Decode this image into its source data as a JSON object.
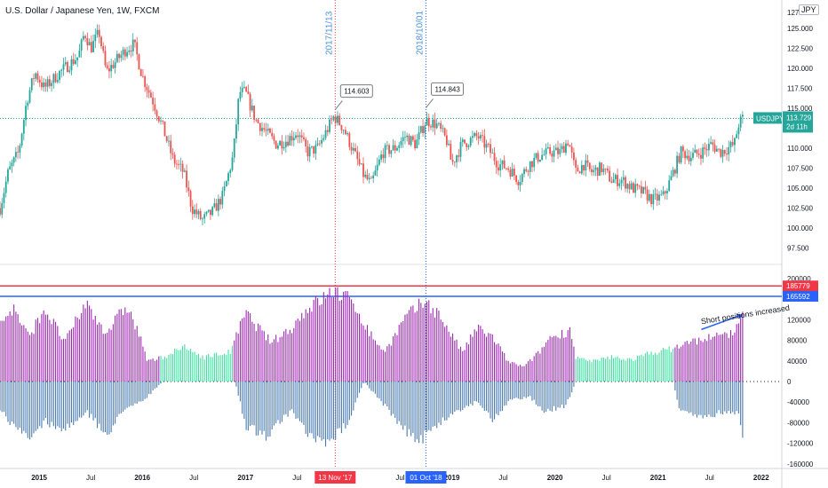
{
  "title": "U.S. Dollar / Japanese Yen, 1W, FXCM",
  "currency_badge": "JPY",
  "colors": {
    "bull": "#26a69a",
    "bear": "#ef5350",
    "net_long": "#9c27b0",
    "net_short": "#4a7ab0",
    "long_small": "#3ee0a0",
    "red_marker": "#f23645",
    "blue_marker": "#2962ff",
    "price_tag": "#26a69a"
  },
  "chart_data": [
    {
      "type": "candlestick",
      "title": "U.S. Dollar / Japanese Yen, 1W, FXCM",
      "y_ticks": [
        127,
        125,
        122.5,
        120,
        117.5,
        115,
        112.5,
        110,
        107.5,
        105,
        102.5,
        100,
        97.5
      ],
      "y_tick_labels": [
        "127",
        "125.000",
        "122.500",
        "120.000",
        "117.500",
        "115.000",
        "112.500",
        "110.000",
        "107.500",
        "105.000",
        "102.500",
        "100.000",
        "97.500"
      ],
      "ylim": [
        96,
        128.4
      ],
      "price_path": [
        [
          2014.62,
          102.5
        ],
        [
          2014.7,
          107.0
        ],
        [
          2014.8,
          109.5
        ],
        [
          2014.88,
          116.0
        ],
        [
          2014.96,
          119.5
        ],
        [
          2015.05,
          117.5
        ],
        [
          2015.2,
          119.5
        ],
        [
          2015.38,
          121.5
        ],
        [
          2015.44,
          124.5
        ],
        [
          2015.5,
          122.5
        ],
        [
          2015.58,
          124.5
        ],
        [
          2015.65,
          119.5
        ],
        [
          2015.75,
          121.0
        ],
        [
          2015.85,
          122.5
        ],
        [
          2015.92,
          123.0
        ],
        [
          2016.0,
          119.0
        ],
        [
          2016.1,
          116.0
        ],
        [
          2016.2,
          112.5
        ],
        [
          2016.3,
          108.5
        ],
        [
          2016.4,
          107.0
        ],
        [
          2016.48,
          102.5
        ],
        [
          2016.58,
          101.0
        ],
        [
          2016.68,
          102.0
        ],
        [
          2016.78,
          104.0
        ],
        [
          2016.88,
          109.0
        ],
        [
          2016.94,
          117.0
        ],
        [
          2017.0,
          117.0
        ],
        [
          2017.1,
          113.5
        ],
        [
          2017.2,
          112.0
        ],
        [
          2017.3,
          110.5
        ],
        [
          2017.4,
          111.0
        ],
        [
          2017.5,
          112.0
        ],
        [
          2017.6,
          109.5
        ],
        [
          2017.7,
          110.0
        ],
        [
          2017.8,
          112.5
        ],
        [
          2017.86,
          114.0
        ],
        [
          2017.95,
          112.5
        ],
        [
          2018.05,
          109.5
        ],
        [
          2018.15,
          106.5
        ],
        [
          2018.22,
          105.5
        ],
        [
          2018.33,
          109.5
        ],
        [
          2018.45,
          110.0
        ],
        [
          2018.55,
          111.5
        ],
        [
          2018.65,
          110.5
        ],
        [
          2018.75,
          113.5
        ],
        [
          2018.85,
          113.0
        ],
        [
          2018.95,
          111.0
        ],
        [
          2019.0,
          108.0
        ],
        [
          2019.1,
          110.5
        ],
        [
          2019.25,
          111.5
        ],
        [
          2019.35,
          110.0
        ],
        [
          2019.45,
          108.0
        ],
        [
          2019.55,
          107.5
        ],
        [
          2019.65,
          106.0
        ],
        [
          2019.75,
          108.0
        ],
        [
          2019.85,
          109.0
        ],
        [
          2019.95,
          109.5
        ],
        [
          2020.05,
          109.5
        ],
        [
          2020.13,
          111.0
        ],
        [
          2020.2,
          107.0
        ],
        [
          2020.28,
          108.0
        ],
        [
          2020.35,
          107.0
        ],
        [
          2020.45,
          107.5
        ],
        [
          2020.55,
          106.0
        ],
        [
          2020.65,
          106.0
        ],
        [
          2020.75,
          105.0
        ],
        [
          2020.85,
          104.5
        ],
        [
          2020.95,
          103.5
        ],
        [
          2021.05,
          104.0
        ],
        [
          2021.12,
          106.0
        ],
        [
          2021.22,
          109.5
        ],
        [
          2021.32,
          109.0
        ],
        [
          2021.42,
          109.5
        ],
        [
          2021.52,
          110.5
        ],
        [
          2021.6,
          109.5
        ],
        [
          2021.68,
          110.0
        ],
        [
          2021.74,
          110.5
        ],
        [
          2021.78,
          113.0
        ],
        [
          2021.82,
          113.7
        ]
      ],
      "x_ticks": [
        {
          "label": "2015",
          "x": 2015.0
        },
        {
          "label": "Jul",
          "x": 2015.5
        },
        {
          "label": "2016",
          "x": 2016.0
        },
        {
          "label": "Jul",
          "x": 2016.5
        },
        {
          "label": "2017",
          "x": 2017.0
        },
        {
          "label": "Jul",
          "x": 2017.5
        },
        {
          "label": "Jul",
          "x": 2018.5
        },
        {
          "label": "2019",
          "x": 2019.0
        },
        {
          "label": "Jul",
          "x": 2019.5
        },
        {
          "label": "2020",
          "x": 2020.0
        },
        {
          "label": "Jul",
          "x": 2020.5
        },
        {
          "label": "2021",
          "x": 2021.0
        },
        {
          "label": "Jul",
          "x": 2021.5
        },
        {
          "label": "2022",
          "x": 2022.0
        }
      ],
      "x_highlight_labels": [
        {
          "label": "13 Nov '17",
          "x": 2017.87,
          "color": "red"
        },
        {
          "label": "01 Oct '18",
          "x": 2018.75,
          "color": "blue"
        }
      ],
      "vertical_markers": [
        {
          "label": "2017/11/13",
          "x": 2017.87,
          "color": "red"
        },
        {
          "label": "2018/10/01",
          "x": 2018.75,
          "color": "blue"
        }
      ],
      "callouts": [
        {
          "label": "114.603",
          "x": 2017.87,
          "y": 114.603
        },
        {
          "label": "114.843",
          "x": 2018.75,
          "y": 114.843
        }
      ],
      "last_price": {
        "symbol": "USDJPY",
        "value": "113.729",
        "countdown": "2d 11h"
      }
    },
    {
      "type": "bar",
      "description_series": [
        "net positions"
      ],
      "y_ticks": [
        200000,
        120000,
        80000,
        40000,
        0,
        -40000,
        -80000,
        -120000,
        -160000
      ],
      "y_tick_labels": [
        "200000",
        "120000",
        "80000",
        "40000",
        "0",
        "-40000",
        "-80000",
        "-120000",
        "-160000"
      ],
      "ylim": [
        -165000,
        210000
      ],
      "horizontal_levels": [
        {
          "label": "185779",
          "value": 185779,
          "color": "red"
        },
        {
          "label": "165592",
          "value": 165592,
          "color": "blue"
        }
      ],
      "annotation": {
        "text": "Short positions increased",
        "x": 2021.5,
        "y": 110000
      },
      "net_long_path": [
        [
          2014.62,
          120000
        ],
        [
          2014.75,
          150000
        ],
        [
          2014.9,
          90000
        ],
        [
          2015.05,
          150000
        ],
        [
          2015.25,
          80000
        ],
        [
          2015.45,
          160000
        ],
        [
          2015.65,
          100000
        ],
        [
          2015.85,
          155000
        ],
        [
          2016.0,
          80000
        ],
        [
          2016.05,
          40000
        ],
        [
          2016.2,
          50000
        ],
        [
          2016.4,
          70000
        ],
        [
          2016.6,
          50000
        ],
        [
          2016.85,
          60000
        ],
        [
          2017.0,
          140000
        ],
        [
          2017.25,
          80000
        ],
        [
          2017.45,
          110000
        ],
        [
          2017.6,
          150000
        ],
        [
          2017.87,
          185779
        ],
        [
          2018.05,
          160000
        ],
        [
          2018.2,
          100000
        ],
        [
          2018.35,
          60000
        ],
        [
          2018.55,
          130000
        ],
        [
          2018.75,
          165592
        ],
        [
          2018.9,
          130000
        ],
        [
          2019.1,
          60000
        ],
        [
          2019.25,
          110000
        ],
        [
          2019.4,
          90000
        ],
        [
          2019.55,
          40000
        ],
        [
          2019.7,
          30000
        ],
        [
          2019.85,
          60000
        ],
        [
          2019.95,
          90000
        ],
        [
          2020.1,
          100000
        ],
        [
          2020.15,
          110000
        ],
        [
          2020.2,
          50000
        ],
        [
          2020.35,
          40000
        ],
        [
          2020.55,
          50000
        ],
        [
          2020.75,
          45000
        ],
        [
          2020.95,
          60000
        ],
        [
          2021.1,
          65000
        ],
        [
          2021.3,
          80000
        ],
        [
          2021.5,
          90000
        ],
        [
          2021.65,
          95000
        ],
        [
          2021.78,
          110000
        ],
        [
          2021.82,
          145000
        ]
      ],
      "net_short_path": [
        [
          2014.62,
          -60000
        ],
        [
          2014.75,
          -90000
        ],
        [
          2014.9,
          -120000
        ],
        [
          2015.05,
          -80000
        ],
        [
          2015.25,
          -100000
        ],
        [
          2015.45,
          -60000
        ],
        [
          2015.65,
          -110000
        ],
        [
          2015.85,
          -50000
        ],
        [
          2016.0,
          -40000
        ],
        [
          2016.2,
          0
        ],
        [
          2016.9,
          0
        ],
        [
          2017.0,
          -90000
        ],
        [
          2017.2,
          -110000
        ],
        [
          2017.45,
          -60000
        ],
        [
          2017.6,
          -110000
        ],
        [
          2017.8,
          -130000
        ],
        [
          2018.0,
          -80000
        ],
        [
          2018.15,
          0
        ],
        [
          2018.35,
          -50000
        ],
        [
          2018.55,
          -100000
        ],
        [
          2018.7,
          -120000
        ],
        [
          2018.85,
          -90000
        ],
        [
          2019.05,
          -60000
        ],
        [
          2019.25,
          -40000
        ],
        [
          2019.4,
          -80000
        ],
        [
          2019.55,
          -40000
        ],
        [
          2019.75,
          -30000
        ],
        [
          2019.9,
          -60000
        ],
        [
          2020.1,
          -50000
        ],
        [
          2020.15,
          -30000
        ],
        [
          2020.2,
          0
        ],
        [
          2021.15,
          0
        ],
        [
          2021.2,
          -60000
        ],
        [
          2021.4,
          -70000
        ],
        [
          2021.6,
          -65000
        ],
        [
          2021.78,
          -60000
        ],
        [
          2021.82,
          -110000
        ]
      ]
    }
  ]
}
